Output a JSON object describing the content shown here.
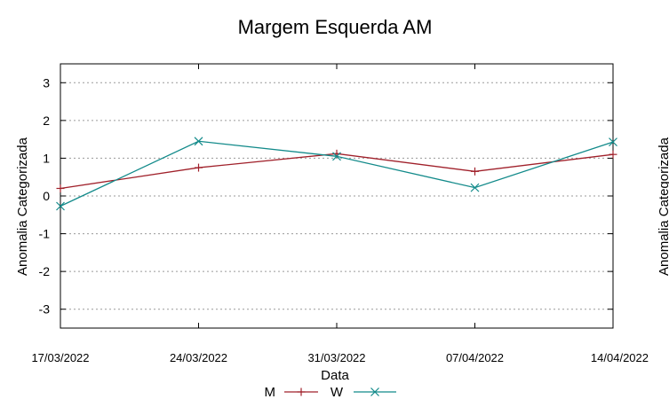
{
  "chart_data": {
    "type": "line",
    "title": "Margem Esquerda AM",
    "xlabel": "Data",
    "ylabel": "Anomalia Categorizada",
    "ylabel_right_partial": "Anomalia Categorizada",
    "categories": [
      "17/03/2022",
      "24/03/2022",
      "31/03/2022",
      "07/04/2022",
      "14/04/2022"
    ],
    "ylim": [
      -3.5,
      3.5
    ],
    "yticks": [
      "3",
      "2",
      "1",
      "0",
      "-1",
      "-2",
      "-3"
    ],
    "ytick_values": [
      3,
      2,
      1,
      0,
      -1,
      -2,
      -3
    ],
    "grid": true,
    "legend_position": "bottom",
    "series": [
      {
        "name": "M",
        "values": [
          0.2,
          0.75,
          1.12,
          0.65,
          1.1
        ],
        "color": "#a0202a",
        "marker": "plus"
      },
      {
        "name": "W",
        "values": [
          -0.27,
          1.45,
          1.05,
          0.22,
          1.43
        ],
        "color": "#128a8a",
        "marker": "cross"
      }
    ]
  }
}
